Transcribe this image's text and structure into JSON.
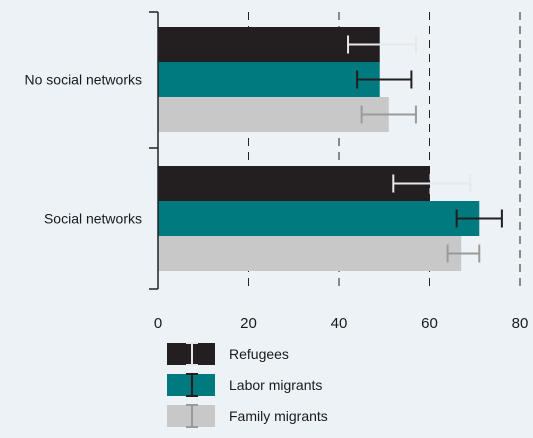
{
  "chart_data": {
    "type": "bar",
    "orientation": "horizontal",
    "categories": [
      "No social networks",
      "Social networks"
    ],
    "series": [
      {
        "name": "Refugees",
        "values": [
          49,
          60
        ],
        "err_low": [
          42,
          52
        ],
        "err_high": [
          57,
          69
        ]
      },
      {
        "name": "Labor migrants",
        "values": [
          49,
          71
        ],
        "err_low": [
          44,
          66
        ],
        "err_high": [
          56,
          76
        ]
      },
      {
        "name": "Family migrants",
        "values": [
          51,
          67
        ],
        "err_low": [
          45,
          64
        ],
        "err_high": [
          57,
          71
        ]
      }
    ],
    "xlim": [
      0,
      80
    ],
    "xticks": [
      0,
      20,
      40,
      60,
      80
    ],
    "grid": "vertical-dashed",
    "legend_position": "bottom",
    "colors": {
      "background": "#edf2f6",
      "series": [
        "#231f20",
        "#007a7e",
        "#c8c8c8"
      ],
      "errorbars": [
        "#e8e8e8",
        "#231f20",
        "#9a9a9a"
      ],
      "grid": "#222222",
      "axis": "#222222"
    }
  }
}
